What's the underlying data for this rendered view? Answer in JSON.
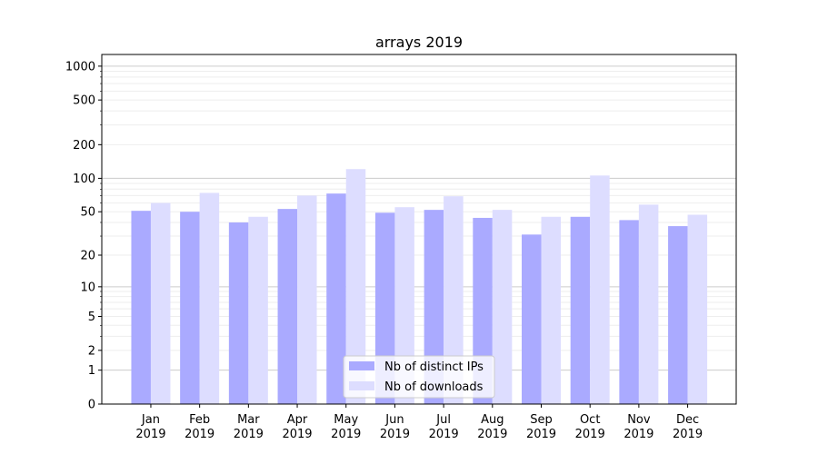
{
  "chart_data": {
    "type": "bar",
    "title": "arrays 2019",
    "xlabel": "",
    "ylabel": "",
    "yscale": "log(1+y)",
    "ylim": [
      0,
      1270
    ],
    "yticks": [
      0,
      1,
      2,
      5,
      10,
      20,
      50,
      100,
      200,
      500,
      1000
    ],
    "ytick_labels": [
      "0",
      "1",
      "2",
      "5",
      "10",
      "20",
      "50",
      "100",
      "200",
      "500",
      "1000"
    ],
    "grid": true,
    "legend_position": "lower center",
    "categories": [
      "Jan\n2019",
      "Feb\n2019",
      "Mar\n2019",
      "Apr\n2019",
      "May\n2019",
      "Jun\n2019",
      "Jul\n2019",
      "Aug\n2019",
      "Sep\n2019",
      "Oct\n2019",
      "Nov\n2019",
      "Dec\n2019"
    ],
    "series": [
      {
        "name": "Nb of distinct IPs",
        "color": "#aaaaff",
        "values": [
          51,
          50,
          40,
          53,
          73,
          49,
          52,
          44,
          31,
          45,
          42,
          37
        ]
      },
      {
        "name": "Nb of downloads",
        "color": "#ddddff",
        "values": [
          60,
          74,
          45,
          70,
          121,
          55,
          69,
          52,
          45,
          106,
          58,
          47
        ]
      }
    ]
  }
}
